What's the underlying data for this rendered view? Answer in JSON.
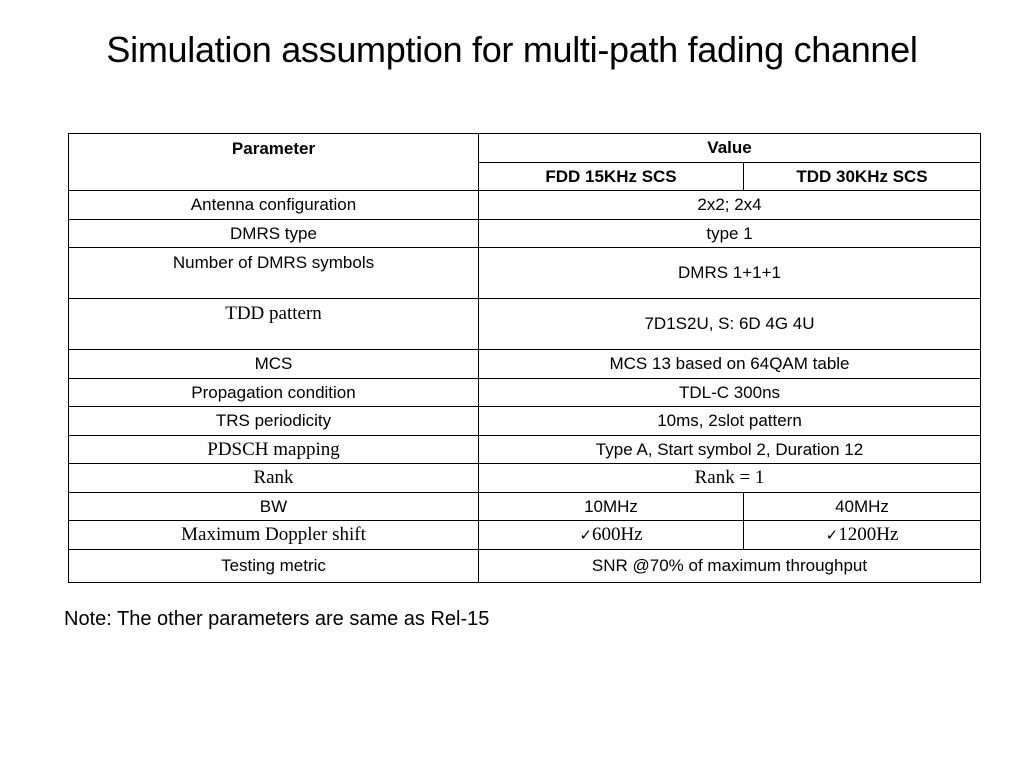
{
  "title": "Simulation assumption for multi-path fading channel",
  "table": {
    "header": {
      "parameter": "Parameter",
      "value": "Value",
      "fdd": "FDD 15KHz SCS",
      "tdd": "TDD 30KHz SCS"
    },
    "rows": [
      {
        "param": "Antenna configuration",
        "value": "2x2; 2x4"
      },
      {
        "param": "DMRS type",
        "value": "type 1"
      },
      {
        "param": "Number of DMRS symbols",
        "value": "DMRS 1+1+1"
      },
      {
        "param": "TDD pattern",
        "value": "7D1S2U, S: 6D 4G 4U"
      },
      {
        "param": "MCS",
        "value": "MCS 13 based on 64QAM table"
      },
      {
        "param": "Propagation condition",
        "value": "TDL-C 300ns"
      },
      {
        "param": "TRS periodicity",
        "value": "10ms, 2slot pattern"
      },
      {
        "param": "PDSCH mapping",
        "value": "Type A, Start symbol 2, Duration 12"
      },
      {
        "param": "Rank",
        "value": "Rank = 1"
      },
      {
        "param": "BW",
        "fdd": "10MHz",
        "tdd": "40MHz"
      },
      {
        "param": "Maximum Doppler shift",
        "fdd": "600Hz",
        "tdd": "1200Hz",
        "checked": true,
        "check_icon": "checkmark-icon"
      },
      {
        "param": "Testing metric",
        "value": "SNR @70% of maximum throughput"
      }
    ]
  },
  "note": "Note: The other parameters are same as Rel-15"
}
